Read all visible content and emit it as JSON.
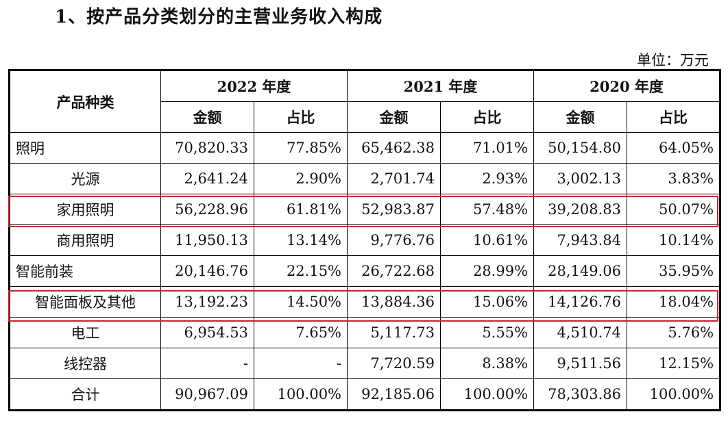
{
  "title": "1、按产品分类划分的主营业务收入构成",
  "unit": "单位：万元",
  "table": {
    "category_header": "产品种类",
    "years": [
      "2022 年度",
      "2021 年度",
      "2020 年度"
    ],
    "sub_headers": [
      "金额",
      "占比"
    ],
    "rows": [
      {
        "name": "照明",
        "bold": true,
        "values": [
          "70,820.33",
          "77.85%",
          "65,462.38",
          "71.01%",
          "50,154.80",
          "64.05%"
        ]
      },
      {
        "name": "光源",
        "bold": false,
        "values": [
          "2,641.24",
          "2.90%",
          "2,701.74",
          "2.93%",
          "3,002.13",
          "3.83%"
        ]
      },
      {
        "name": "家用照明",
        "bold": false,
        "highlight": true,
        "values": [
          "56,228.96",
          "61.81%",
          "52,983.87",
          "57.48%",
          "39,208.83",
          "50.07%"
        ]
      },
      {
        "name": "商用照明",
        "bold": false,
        "values": [
          "11,950.13",
          "13.14%",
          "9,776.76",
          "10.61%",
          "7,943.84",
          "10.14%"
        ]
      },
      {
        "name": "智能前装",
        "bold": true,
        "values": [
          "20,146.76",
          "22.15%",
          "26,722.68",
          "28.99%",
          "28,149.06",
          "35.95%"
        ]
      },
      {
        "name": "智能面板及其他",
        "bold": false,
        "highlight": true,
        "values": [
          "13,192.23",
          "14.50%",
          "13,884.36",
          "15.06%",
          "14,126.76",
          "18.04%"
        ]
      },
      {
        "name": "电工",
        "bold": false,
        "values": [
          "6,954.53",
          "7.65%",
          "5,117.73",
          "5.55%",
          "4,510.74",
          "5.76%"
        ]
      },
      {
        "name": "线控器",
        "bold": false,
        "values": [
          "-",
          "-",
          "7,720.59",
          "8.38%",
          "9,511.56",
          "12.15%"
        ]
      },
      {
        "name": "合计",
        "bold": true,
        "total": true,
        "values": [
          "90,967.09",
          "100.00%",
          "92,185.06",
          "100.00%",
          "78,303.86",
          "100.00%"
        ]
      }
    ]
  },
  "colors": {
    "highlight_border": "#c8242b"
  }
}
